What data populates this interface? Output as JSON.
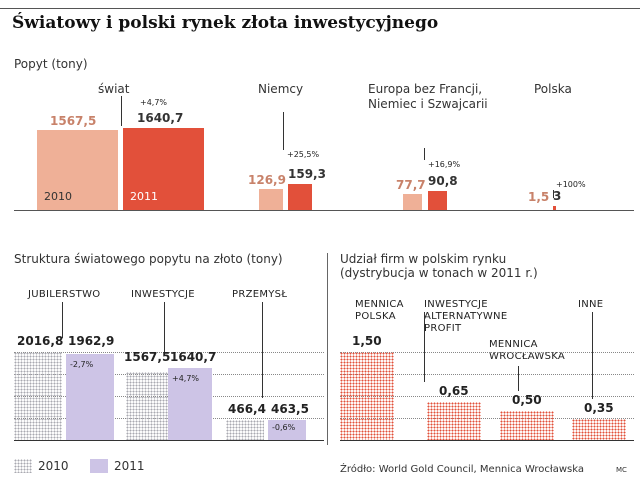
{
  "title": "Światowy i polski rynek złota inwestycyjnego",
  "top": {
    "subtitle": "Popyt (tony)",
    "groups": [
      {
        "label": "świat",
        "v2010": "1567,5",
        "v2011": "1640,7",
        "change": "+4,7%",
        "year1": "2010",
        "year2": "2011"
      },
      {
        "label": "Niemcy",
        "v2010": "126,9",
        "v2011": "159,3",
        "change": "+25,5%"
      },
      {
        "label": "Europa bez Francji, Niemiec i Szwajcarii",
        "v2010": "77,7",
        "v2011": "90,8",
        "change": "+16,9%"
      },
      {
        "label": "Polska",
        "v2010": "1,5",
        "v2011": "3",
        "change": "+100%"
      }
    ]
  },
  "left": {
    "subtitle": "Struktura światowego popytu na złoto (tony)",
    "groups": [
      {
        "label": "JUBILERSTWO",
        "v2010": "2016,8",
        "v2011": "1962,9",
        "change": "-2,7%"
      },
      {
        "label": "INWESTYCJE",
        "v2010": "1567,5",
        "v2011": "1640,7",
        "change": "+4,7%"
      },
      {
        "label": "PRZEMYSŁ",
        "v2010": "466,4",
        "v2011": "463,5",
        "change": "-0,6%"
      }
    ]
  },
  "right": {
    "subtitle_line1": "Udział firm w polskim rynku",
    "subtitle_line2": "(dystrybucja w tonach w 2011 r.)",
    "bars": [
      {
        "label": "MENNICA POLSKA",
        "value": "1,50"
      },
      {
        "label": "INWESTYCJE ALTERNATYWNE PROFIT",
        "value": "0,65"
      },
      {
        "label": "MENNICA WROCŁAWSKA",
        "value": "0,50"
      },
      {
        "label": "INNE",
        "value": "0,35"
      }
    ]
  },
  "legend": {
    "y2010": "2010",
    "y2011": "2011"
  },
  "source": "Źródło: World Gold Council, Mennica Wrocławska",
  "credit": "MC",
  "colors": {
    "light_2010": "#efb097",
    "dark_2011": "#e2503a",
    "purple_2011": "#cdc4e6",
    "red_dots": "#e2503a",
    "grey_dots": "#a9a9b0",
    "axis": "#333333"
  },
  "chart_data": [
    {
      "type": "bar",
      "title": "Popyt (tony)",
      "categories": [
        "świat",
        "Niemcy",
        "Europa bez Francji, Niemiec i Szwajcarii",
        "Polska"
      ],
      "series": [
        {
          "name": "2010",
          "values": [
            1567.5,
            126.9,
            77.7,
            1.5
          ]
        },
        {
          "name": "2011",
          "values": [
            1640.7,
            159.3,
            90.8,
            3
          ]
        }
      ],
      "changes": [
        "+4,7%",
        "+25,5%",
        "+16,9%",
        "+100%"
      ]
    },
    {
      "type": "bar",
      "title": "Struktura światowego popytu na złoto (tony)",
      "categories": [
        "JUBILERSTWO",
        "INWESTYCJE",
        "PRZEMYSŁ"
      ],
      "series": [
        {
          "name": "2010",
          "values": [
            2016.8,
            1567.5,
            466.4
          ]
        },
        {
          "name": "2011",
          "values": [
            1962.9,
            1640.7,
            463.5
          ]
        }
      ],
      "changes": [
        "-2,7%",
        "+4,7%",
        "-0,6%"
      ]
    },
    {
      "type": "bar",
      "title": "Udział firm w polskim rynku (dystrybucja w tonach w 2011 r.)",
      "categories": [
        "MENNICA POLSKA",
        "INWESTYCJE ALTERNATYWNE PROFIT",
        "MENNICA WROCŁAWSKA",
        "INNE"
      ],
      "values": [
        1.5,
        0.65,
        0.5,
        0.35
      ]
    }
  ]
}
